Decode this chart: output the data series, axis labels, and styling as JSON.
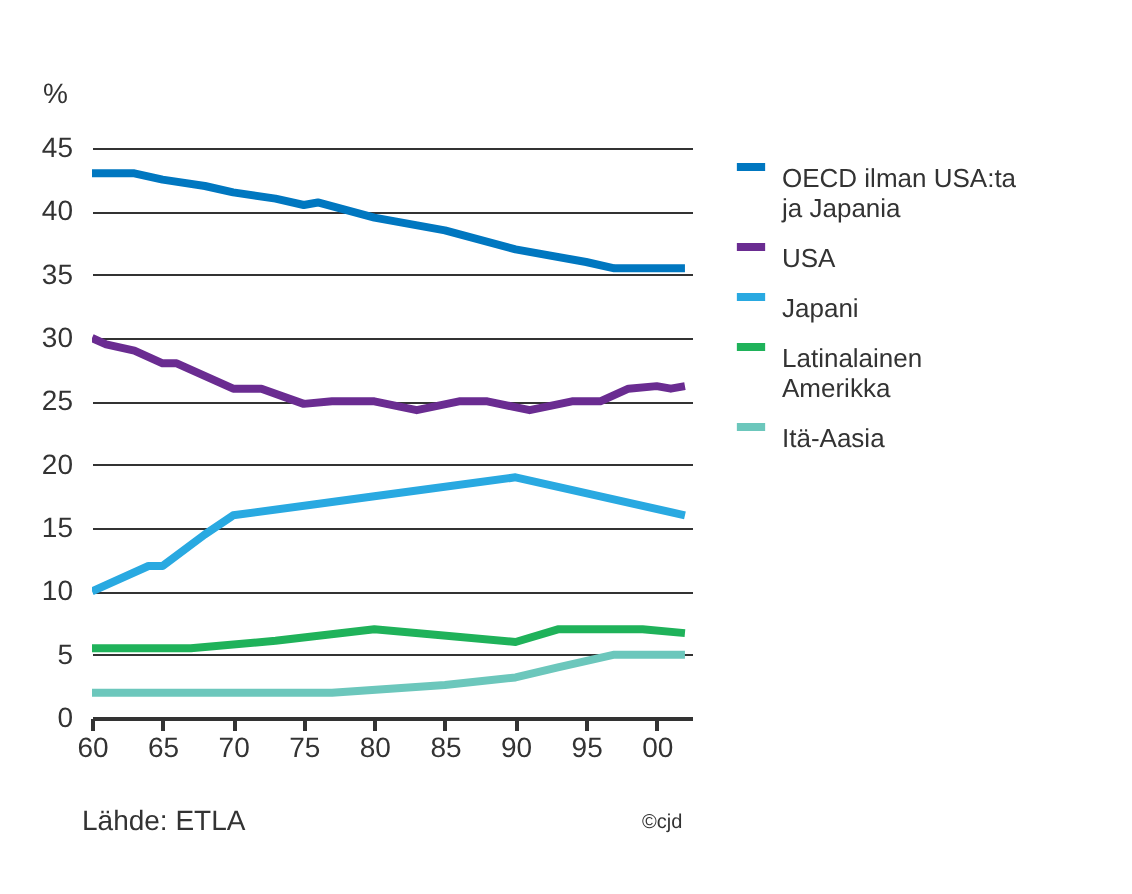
{
  "chart_data": {
    "type": "line",
    "ylabel": "%",
    "xlim": [
      1960,
      2002.5
    ],
    "xticks": [
      {
        "value": 1960,
        "label": "60"
      },
      {
        "value": 1965,
        "label": "65"
      },
      {
        "value": 1970,
        "label": "70"
      },
      {
        "value": 1975,
        "label": "75"
      },
      {
        "value": 1980,
        "label": "80"
      },
      {
        "value": 1985,
        "label": "85"
      },
      {
        "value": 1990,
        "label": "90"
      },
      {
        "value": 1995,
        "label": "95"
      },
      {
        "value": 2000,
        "label": "00"
      }
    ],
    "ylim": [
      0,
      45
    ],
    "yticks": [
      0,
      5,
      10,
      15,
      20,
      25,
      30,
      35,
      40,
      45
    ],
    "grid": "y",
    "legend": "right",
    "marker": "none",
    "line_style": "solid",
    "annotations": [
      "Lähde: ETLA",
      "©cjd"
    ],
    "series": [
      {
        "name": "OECD ilman USA:ta ja Japania",
        "color": "#0077c0",
        "x": [
          1960,
          1963,
          1965,
          1968,
          1970,
          1973,
          1975,
          1976,
          1980,
          1985,
          1990,
          1995,
          1997,
          2002
        ],
        "values": [
          43,
          43,
          42.5,
          42,
          41.5,
          41,
          40.5,
          40.7,
          39.5,
          38.5,
          37,
          36,
          35.5,
          35.5
        ]
      },
      {
        "name": "USA",
        "color": "#6a2c91",
        "x": [
          1960,
          1961,
          1963,
          1965,
          1966,
          1970,
          1972,
          1975,
          1977,
          1980,
          1983,
          1986,
          1988,
          1991,
          1994,
          1996,
          1998,
          2000,
          2001,
          2002
        ],
        "values": [
          30,
          29.5,
          29,
          28,
          28,
          26,
          26,
          24.8,
          25,
          25,
          24.3,
          25,
          25,
          24.3,
          25,
          25,
          26,
          26.2,
          26,
          26.2
        ]
      },
      {
        "name": "Japani",
        "color": "#29a9e1",
        "x": [
          1960,
          1964,
          1965,
          1968,
          1970,
          1980,
          1990,
          2002
        ],
        "values": [
          10,
          12,
          12,
          14.5,
          16,
          17.5,
          19,
          16
        ]
      },
      {
        "name": "Latinalainen Amerikka",
        "color": "#1fb25a",
        "x": [
          1960,
          1967,
          1973,
          1980,
          1990,
          1993,
          1999,
          2002
        ],
        "values": [
          5.5,
          5.5,
          6.1,
          7,
          6,
          7,
          7,
          6.7
        ]
      },
      {
        "name": "Itä-Aasia",
        "color": "#6cc7bc",
        "x": [
          1960,
          1977,
          1985,
          1990,
          1993,
          1997,
          2002
        ],
        "values": [
          2,
          2,
          2.6,
          3.2,
          4,
          5,
          5
        ]
      }
    ]
  }
}
